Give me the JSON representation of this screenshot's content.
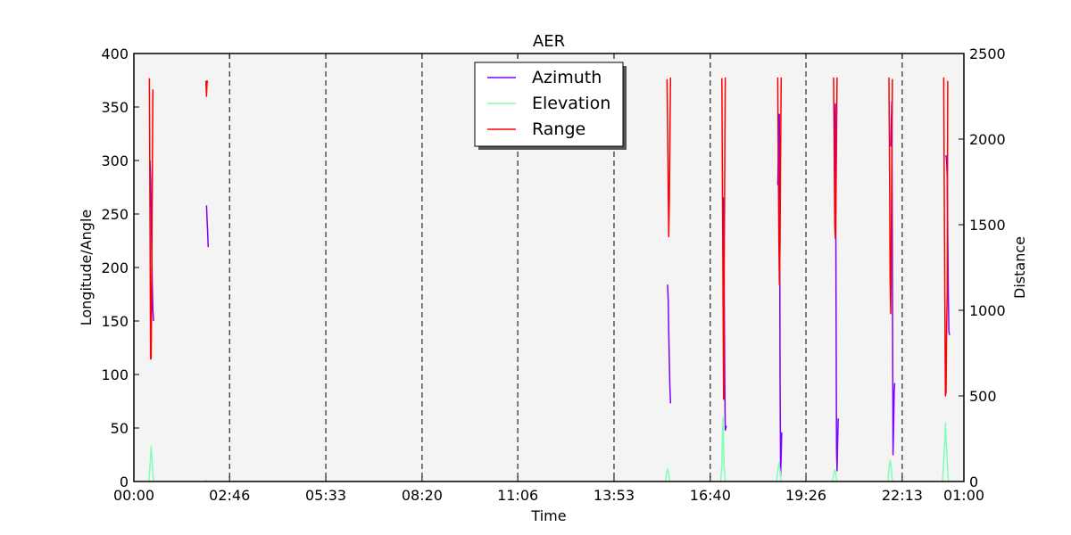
{
  "chart_data": {
    "type": "line",
    "title": "AER",
    "xlabel": "Time",
    "ylabel": "Longitude/Angle",
    "y2label": "Distance",
    "xlim": [
      0,
      1440
    ],
    "ylim": [
      0,
      400
    ],
    "y2lim": [
      0,
      2500
    ],
    "x_ticks": [
      {
        "value": 0,
        "label": "00:00"
      },
      {
        "value": 166,
        "label": "02:46"
      },
      {
        "value": 333,
        "label": "05:33"
      },
      {
        "value": 500,
        "label": "08:20"
      },
      {
        "value": 666,
        "label": "11:06"
      },
      {
        "value": 833,
        "label": "13:53"
      },
      {
        "value": 1000,
        "label": "16:40"
      },
      {
        "value": 1166,
        "label": "19:26"
      },
      {
        "value": 1333,
        "label": "22:13"
      },
      {
        "value": 1440,
        "label": "01:00"
      }
    ],
    "y_ticks": [
      0,
      50,
      100,
      150,
      200,
      250,
      300,
      350,
      400
    ],
    "y2_ticks": [
      0,
      500,
      1000,
      1500,
      2000,
      2500
    ],
    "vertical_dashed_lines": [
      166,
      333,
      500,
      666,
      833,
      1000,
      1166,
      1333
    ],
    "grid": false,
    "legend": {
      "position": "top-center",
      "entries": [
        "Azimuth",
        "Elevation",
        "Range"
      ]
    },
    "colors": {
      "Azimuth": "#7f00ff",
      "Elevation": "#80ffb4",
      "Range": "#ff0000",
      "plot_bg": "#f4f4f4"
    },
    "series": [
      {
        "name": "Azimuth",
        "axis": "left",
        "segments": [
          [
            [
              28,
              300
            ],
            [
              29,
              285
            ],
            [
              30,
              255
            ],
            [
              31,
              215
            ],
            [
              32,
              180
            ],
            [
              33,
              160
            ],
            [
              34,
              150
            ]
          ],
          [
            [
              126,
              258
            ],
            [
              127,
              245
            ],
            [
              128,
              232
            ],
            [
              129,
              219
            ]
          ],
          [
            [
              926,
              184
            ],
            [
              927,
              170
            ],
            [
              928,
              140
            ],
            [
              929,
              110
            ],
            [
              930,
              88
            ],
            [
              931,
              73
            ]
          ],
          [
            [
              1022,
              235
            ],
            [
              1023,
              265
            ],
            [
              1024,
              200
            ],
            [
              1025,
              100
            ],
            [
              1026,
              48
            ],
            [
              1027,
              50
            ],
            [
              1028,
              52
            ]
          ],
          [
            [
              1117,
              277
            ],
            [
              1118,
              300
            ],
            [
              1119,
              343
            ],
            [
              1120,
              343
            ],
            [
              1121,
              100
            ],
            [
              1122,
              5
            ],
            [
              1123,
              25
            ],
            [
              1124,
              46
            ]
          ],
          [
            [
              1215,
              305
            ],
            [
              1216,
              330
            ],
            [
              1217,
              353
            ],
            [
              1218,
              210
            ],
            [
              1219,
              30
            ],
            [
              1220,
              10
            ],
            [
              1221,
              40
            ],
            [
              1222,
              59
            ]
          ],
          [
            [
              1313,
              313
            ],
            [
              1314,
              335
            ],
            [
              1315,
              355
            ],
            [
              1316,
              200
            ],
            [
              1317,
              25
            ],
            [
              1318,
              50
            ],
            [
              1319,
              85
            ],
            [
              1320,
              92
            ]
          ],
          [
            [
              1409,
              305
            ],
            [
              1410,
              300
            ],
            [
              1411,
              285
            ],
            [
              1412,
              230
            ],
            [
              1413,
              170
            ],
            [
              1414,
              140
            ],
            [
              1415,
              137
            ]
          ]
        ]
      },
      {
        "name": "Elevation",
        "axis": "left",
        "segments": [
          [
            [
              26,
              0
            ],
            [
              28,
              15
            ],
            [
              30,
              33
            ],
            [
              32,
              15
            ],
            [
              34,
              0
            ]
          ],
          [
            [
              125,
              0
            ],
            [
              126,
              1
            ],
            [
              128,
              0
            ]
          ],
          [
            [
              922,
              0
            ],
            [
              924,
              7
            ],
            [
              926,
              12
            ],
            [
              928,
              7
            ],
            [
              930,
              0
            ]
          ],
          [
            [
              1018,
              0
            ],
            [
              1020,
              15
            ],
            [
              1021,
              40
            ],
            [
              1022,
              60
            ],
            [
              1023,
              40
            ],
            [
              1024,
              15
            ],
            [
              1026,
              0
            ]
          ],
          [
            [
              1115,
              0
            ],
            [
              1117,
              10
            ],
            [
              1119,
              17
            ],
            [
              1121,
              10
            ],
            [
              1123,
              0
            ]
          ],
          [
            [
              1212,
              0
            ],
            [
              1214,
              6
            ],
            [
              1216,
              11
            ],
            [
              1218,
              6
            ],
            [
              1220,
              0
            ]
          ],
          [
            [
              1308,
              0
            ],
            [
              1310,
              12
            ],
            [
              1312,
              20
            ],
            [
              1314,
              12
            ],
            [
              1316,
              0
            ]
          ],
          [
            [
              1403,
              0
            ],
            [
              1405,
              20
            ],
            [
              1407,
              40
            ],
            [
              1408,
              55
            ],
            [
              1409,
              40
            ],
            [
              1411,
              20
            ],
            [
              1413,
              0
            ]
          ]
        ]
      },
      {
        "name": "Range",
        "axis": "right",
        "segments": [
          [
            [
              27,
              2355
            ],
            [
              28,
              1500
            ],
            [
              29,
              715
            ],
            [
              30,
              720
            ],
            [
              31,
              1200
            ],
            [
              32,
              1800
            ],
            [
              33,
              2290
            ]
          ],
          [
            [
              125,
              2340
            ],
            [
              126,
              2250
            ],
            [
              127,
              2340
            ],
            [
              128,
              2330
            ]
          ],
          [
            [
              925,
              2350
            ],
            [
              926,
              2100
            ],
            [
              927,
              1700
            ],
            [
              928,
              1430
            ],
            [
              929,
              1650
            ],
            [
              930,
              2000
            ],
            [
              931,
              2360
            ]
          ],
          [
            [
              1020,
              2355
            ],
            [
              1021,
              1800
            ],
            [
              1022,
              1200
            ],
            [
              1023,
              480
            ],
            [
              1024,
              1100
            ],
            [
              1025,
              1800
            ],
            [
              1026,
              2360
            ]
          ],
          [
            [
              1117,
              2360
            ],
            [
              1118,
              1900
            ],
            [
              1119,
              1400
            ],
            [
              1120,
              1150
            ],
            [
              1121,
              1400
            ],
            [
              1122,
              1900
            ],
            [
              1123,
              2360
            ]
          ],
          [
            [
              1214,
              2360
            ],
            [
              1215,
              1900
            ],
            [
              1216,
              1500
            ],
            [
              1217,
              1420
            ],
            [
              1218,
              1600
            ],
            [
              1219,
              2000
            ],
            [
              1220,
              2360
            ]
          ],
          [
            [
              1310,
              2360
            ],
            [
              1311,
              1800
            ],
            [
              1312,
              1200
            ],
            [
              1313,
              980
            ],
            [
              1314,
              1400
            ],
            [
              1315,
              1900
            ],
            [
              1316,
              2350
            ]
          ],
          [
            [
              1405,
              2360
            ],
            [
              1406,
              1700
            ],
            [
              1407,
              1000
            ],
            [
              1408,
              500
            ],
            [
              1409,
              520
            ],
            [
              1410,
              900
            ],
            [
              1411,
              1100
            ],
            [
              1412,
              2340
            ]
          ]
        ]
      }
    ]
  }
}
